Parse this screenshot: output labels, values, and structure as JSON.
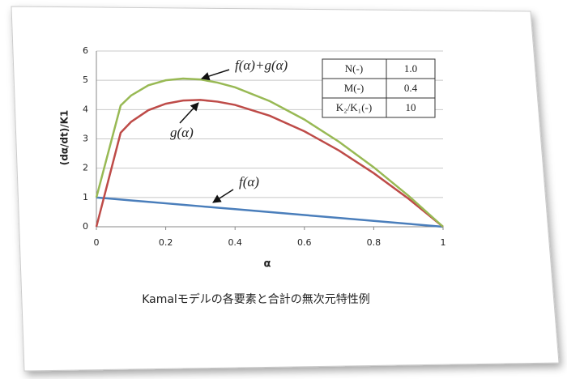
{
  "chart_data": {
    "type": "line",
    "x": [
      0,
      0.07,
      0.1,
      0.15,
      0.2,
      0.25,
      0.3,
      0.35,
      0.4,
      0.5,
      0.6,
      0.7,
      0.8,
      0.9,
      1
    ],
    "series": [
      {
        "color": "#4a7ebb",
        "values": [
          1,
          0.93,
          0.9,
          0.85,
          0.8,
          0.75,
          0.7,
          0.65,
          0.6,
          0.5,
          0.4,
          0.3,
          0.2,
          0.1,
          0
        ]
      },
      {
        "color": "#be4b48",
        "values": [
          0,
          3.21,
          3.58,
          3.98,
          4.2,
          4.31,
          4.33,
          4.27,
          4.16,
          3.79,
          3.26,
          2.6,
          1.83,
          0.96,
          0
        ]
      },
      {
        "color": "#98b954",
        "values": [
          1,
          4.14,
          4.48,
          4.83,
          5.0,
          5.06,
          5.03,
          4.92,
          4.76,
          4.29,
          3.66,
          2.9,
          2.03,
          1.06,
          0
        ]
      }
    ],
    "xlim": [
      0,
      1
    ],
    "xticks": [
      0,
      0.2,
      0.4,
      0.6,
      0.8,
      1
    ],
    "ylim": [
      0,
      6
    ],
    "yticks": [
      0,
      1,
      2,
      3,
      4,
      5,
      6
    ],
    "grid": true,
    "x_label": "α",
    "y_label": "(dα/dt)/K1",
    "annotations": [
      "f(α)+g(α)",
      "g(α)",
      "f(α)"
    ],
    "table": [
      [
        "N(-)",
        "1.0"
      ],
      [
        "M(-)",
        "0.4"
      ],
      [
        "K₂/K₁(-)",
        "10"
      ]
    ]
  },
  "caption": "Kamalモデルの各要素と合計の無次元特性例"
}
